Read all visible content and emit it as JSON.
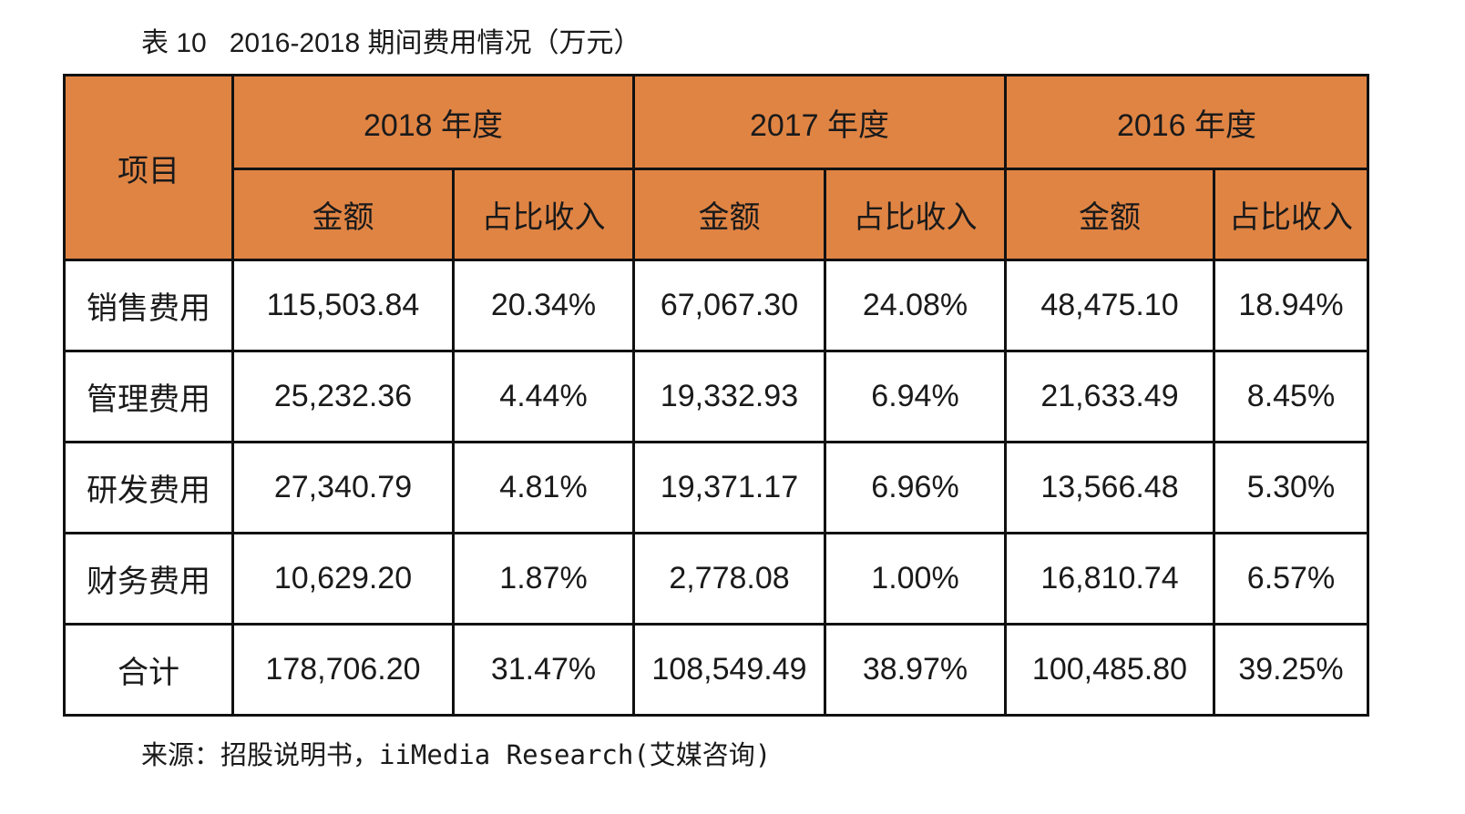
{
  "title": "表 10   2016-2018 期间费用情况（万元）",
  "table": {
    "item_header": "项目",
    "years": [
      "2018 年度",
      "2017 年度",
      "2016 年度"
    ],
    "sub_headers": [
      "金额",
      "占比收入"
    ],
    "header_color": "#E08444",
    "rows": [
      {
        "label": "销售费用",
        "values": [
          "115,503.84",
          "20.34%",
          "67,067.30",
          "24.08%",
          "48,475.10",
          "18.94%"
        ]
      },
      {
        "label": "管理费用",
        "values": [
          "25,232.36",
          "4.44%",
          "19,332.93",
          "6.94%",
          "21,633.49",
          "8.45%"
        ]
      },
      {
        "label": "研发费用",
        "values": [
          "27,340.79",
          "4.81%",
          "19,371.17",
          "6.96%",
          "13,566.48",
          "5.30%"
        ]
      },
      {
        "label": "财务费用",
        "values": [
          "10,629.20",
          "1.87%",
          "2,778.08",
          "1.00%",
          "16,810.74",
          "6.57%"
        ]
      },
      {
        "label": "合计",
        "values": [
          "178,706.20",
          "31.47%",
          "108,549.49",
          "38.97%",
          "100,485.80",
          "39.25%"
        ]
      }
    ]
  },
  "source": "来源：招股说明书，iiMedia Research(艾媒咨询)"
}
